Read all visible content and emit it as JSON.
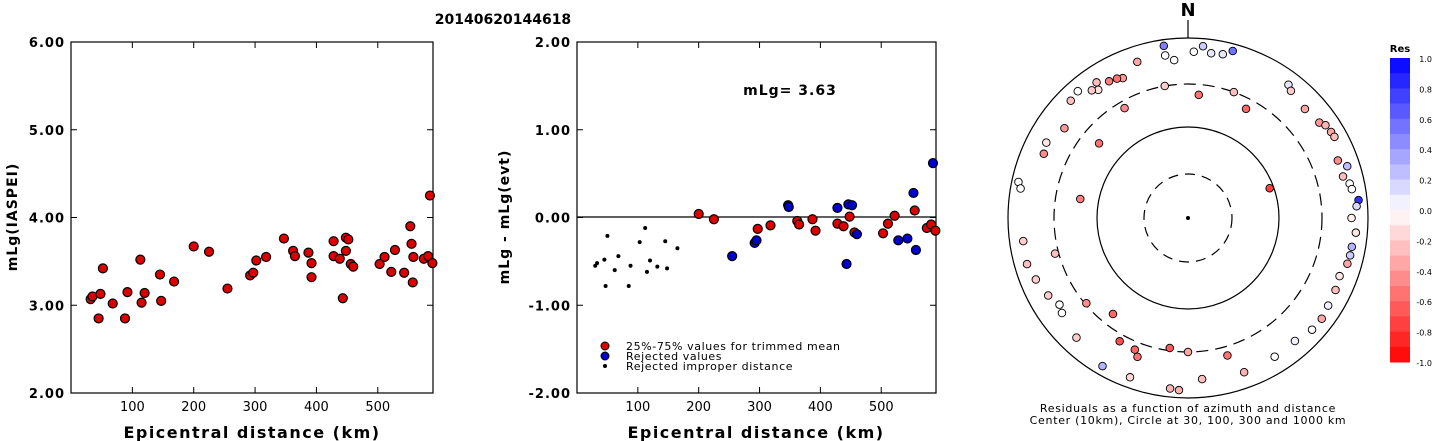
{
  "page_title": "20140620144618",
  "colors": {
    "red": "#dd0000",
    "blue": "#0000cc",
    "black": "#000000"
  },
  "chart_data": [
    {
      "type": "scatter",
      "title": "",
      "xlabel": "Epicentral distance (km)",
      "ylabel": "mLg(IASPEI)",
      "xlim": [
        0,
        590
      ],
      "ylim": [
        2.0,
        6.0
      ],
      "x_ticks": [
        "100",
        "200",
        "300",
        "400",
        "500"
      ],
      "x_tick_values": [
        100,
        200,
        300,
        400,
        500
      ],
      "y_ticks": [
        "2.00",
        "3.00",
        "4.00",
        "5.00",
        "6.00"
      ],
      "y_tick_values": [
        2,
        3,
        4,
        5,
        6
      ],
      "series": [
        {
          "color": "red",
          "points": [
            [
              32,
              3.07
            ],
            [
              35,
              3.1
            ],
            [
              45,
              2.85
            ],
            [
              48,
              3.13
            ],
            [
              52,
              3.42
            ],
            [
              68,
              3.02
            ],
            [
              88,
              2.85
            ],
            [
              92,
              3.15
            ],
            [
              115,
              3.03
            ],
            [
              113,
              3.52
            ],
            [
              120,
              3.14
            ],
            [
              145,
              3.35
            ],
            [
              147,
              3.05
            ],
            [
              168,
              3.27
            ],
            [
              200,
              3.67
            ],
            [
              225,
              3.61
            ],
            [
              255,
              3.19
            ],
            [
              292,
              3.34
            ],
            [
              297,
              3.37
            ],
            [
              302,
              3.51
            ],
            [
              318,
              3.55
            ],
            [
              347,
              3.76
            ],
            [
              362,
              3.62
            ],
            [
              365,
              3.56
            ],
            [
              387,
              3.6
            ],
            [
              392,
              3.48
            ],
            [
              392,
              3.32
            ],
            [
              428,
              3.73
            ],
            [
              428,
              3.56
            ],
            [
              438,
              3.53
            ],
            [
              443,
              3.08
            ],
            [
              448,
              3.62
            ],
            [
              448,
              3.77
            ],
            [
              452,
              3.75
            ],
            [
              456,
              3.47
            ],
            [
              460,
              3.44
            ],
            [
              503,
              3.47
            ],
            [
              511,
              3.55
            ],
            [
              522,
              3.38
            ],
            [
              528,
              3.63
            ],
            [
              543,
              3.37
            ],
            [
              553,
              3.9
            ],
            [
              555,
              3.7
            ],
            [
              557,
              3.26
            ],
            [
              558,
              3.55
            ],
            [
              575,
              3.53
            ],
            [
              582,
              3.56
            ],
            [
              585,
              4.25
            ],
            [
              589,
              3.48
            ]
          ]
        }
      ]
    },
    {
      "type": "scatter",
      "title": "",
      "xlabel": "Epicentral distance (km)",
      "ylabel": "mLg - mLg(evt)",
      "annotation": "mLg= 3.63",
      "xlim": [
        0,
        590
      ],
      "ylim": [
        -2.0,
        2.0
      ],
      "x_ticks": [
        "100",
        "200",
        "300",
        "400",
        "500"
      ],
      "x_tick_values": [
        100,
        200,
        300,
        400,
        500
      ],
      "y_ticks": [
        "-2.00",
        "-1.00",
        "0.00",
        "1.00",
        "2.00"
      ],
      "y_tick_values": [
        -2,
        -1,
        0,
        1,
        2
      ],
      "zero_line": true,
      "legend": {
        "position": "bottom-left",
        "entries": [
          {
            "label": "25%-75% values for trimmed mean",
            "color": "red",
            "marker": "circle"
          },
          {
            "label": "Rejected values",
            "color": "blue",
            "marker": "circle"
          },
          {
            "label": "Rejected improper distance",
            "color": "black",
            "marker": "dot"
          }
        ]
      },
      "series": [
        {
          "color": "red",
          "points": [
            [
              200,
              0.04
            ],
            [
              225,
              -0.02
            ],
            [
              297,
              -0.13
            ],
            [
              318,
              -0.09
            ],
            [
              362,
              -0.04
            ],
            [
              365,
              -0.08
            ],
            [
              387,
              -0.02
            ],
            [
              392,
              -0.15
            ],
            [
              428,
              -0.07
            ],
            [
              438,
              -0.1
            ],
            [
              448,
              0.01
            ],
            [
              456,
              -0.17
            ],
            [
              503,
              -0.18
            ],
            [
              511,
              -0.07
            ],
            [
              522,
              0.02
            ],
            [
              555,
              0.08
            ],
            [
              575,
              -0.12
            ],
            [
              582,
              -0.08
            ],
            [
              589,
              -0.15
            ]
          ]
        },
        {
          "color": "blue",
          "points": [
            [
              255,
              -0.44
            ],
            [
              292,
              -0.29
            ],
            [
              295,
              -0.26
            ],
            [
              347,
              0.14
            ],
            [
              348,
              0.12
            ],
            [
              428,
              0.11
            ],
            [
              443,
              -0.53
            ],
            [
              446,
              0.15
            ],
            [
              452,
              0.14
            ],
            [
              460,
              -0.19
            ],
            [
              528,
              -0.26
            ],
            [
              543,
              -0.24
            ],
            [
              553,
              0.28
            ],
            [
              557,
              -0.37
            ],
            [
              585,
              0.62
            ]
          ]
        },
        {
          "color": "black",
          "points": [
            [
              30,
              -0.55
            ],
            [
              33,
              -0.52
            ],
            [
              45,
              -0.48
            ],
            [
              47,
              -0.78
            ],
            [
              50,
              -0.21
            ],
            [
              62,
              -0.6
            ],
            [
              68,
              -0.44
            ],
            [
              85,
              -0.78
            ],
            [
              88,
              -0.55
            ],
            [
              103,
              -0.28
            ],
            [
              112,
              -0.12
            ],
            [
              115,
              -0.62
            ],
            [
              120,
              -0.49
            ],
            [
              132,
              -0.56
            ],
            [
              145,
              -0.27
            ],
            [
              148,
              -0.58
            ],
            [
              165,
              -0.35
            ]
          ]
        }
      ]
    },
    {
      "type": "polar-scatter",
      "title": "",
      "north_label": "N",
      "caption_line1": "Residuals as a function of azimuth and distance",
      "caption_line2": "Center (10km), Circle at 30, 100, 300 and 1000 km",
      "colorbar_title": "Res",
      "colorbar_ticks": [
        "1.0",
        "0.8",
        "0.6",
        "0.4",
        "0.2",
        "0.0",
        "-0.2",
        "-0.4",
        "-0.6",
        "-0.8",
        "-1.0"
      ],
      "colorbar_range": [
        -1.0,
        1.0
      ],
      "points": [
        {
          "az": -10,
          "dist": 300,
          "res": -0.2
        },
        {
          "az": 20,
          "dist": 300,
          "res": -0.25
        },
        {
          "az": 5,
          "dist": 230,
          "res": -0.55
        },
        {
          "az": -30,
          "dist": 250,
          "res": -0.45
        },
        {
          "az": 28,
          "dist": 230,
          "res": -0.6
        },
        {
          "az": 70,
          "dist": 90,
          "res": -0.75
        },
        {
          "az": -50,
          "dist": 190,
          "res": -0.55
        },
        {
          "az": -80,
          "dist": 160,
          "res": -0.5
        },
        {
          "az": -105,
          "dist": 330,
          "res": -0.25
        },
        {
          "az": -78,
          "dist": 840,
          "res": 0.0
        },
        {
          "az": -62,
          "dist": 600,
          "res": -0.1
        },
        {
          "az": -45,
          "dist": 690,
          "res": -0.25
        },
        {
          "az": -35,
          "dist": 540,
          "res": -0.1
        },
        {
          "az": -25,
          "dist": 510,
          "res": -0.4
        },
        {
          "az": -8,
          "dist": 850,
          "res": 0.5
        },
        {
          "az": 5,
          "dist": 820,
          "res": 0.2
        },
        {
          "az": 2,
          "dist": 700,
          "res": 0.0
        },
        {
          "az": 8,
          "dist": 700,
          "res": 0.1
        },
        {
          "az": 12,
          "dist": 720,
          "res": 0.1
        },
        {
          "az": 15,
          "dist": 830,
          "res": 0.55
        },
        {
          "az": 37,
          "dist": 710,
          "res": 0.1
        },
        {
          "az": 39,
          "dist": 650,
          "res": -0.2
        },
        {
          "az": 47,
          "dist": 590,
          "res": -0.35
        },
        {
          "az": 54,
          "dist": 630,
          "res": -0.4
        },
        {
          "az": 56,
          "dist": 690,
          "res": -0.3
        },
        {
          "az": 59,
          "dist": 710,
          "res": -0.35
        },
        {
          "az": 61,
          "dist": 720,
          "res": -0.25
        },
        {
          "az": 69,
          "dist": 600,
          "res": -0.45
        },
        {
          "az": 72,
          "dist": 720,
          "res": 0.25
        },
        {
          "az": 75,
          "dist": 600,
          "res": -0.25
        },
        {
          "az": 78,
          "dist": 680,
          "res": 0.0
        },
        {
          "az": 80,
          "dist": 700,
          "res": 0.0
        },
        {
          "az": 84,
          "dist": 800,
          "res": 0.8
        },
        {
          "az": 86,
          "dist": 750,
          "res": 0.15
        },
        {
          "az": 90,
          "dist": 650,
          "res": -0.05
        },
        {
          "az": 95,
          "dist": 740,
          "res": -0.1
        },
        {
          "az": 100,
          "dist": 700,
          "res": 0.3
        },
        {
          "az": 103,
          "dist": 700,
          "res": 0.2
        },
        {
          "az": 106,
          "dist": 690,
          "res": -0.35
        },
        {
          "az": 111,
          "dist": 630,
          "res": -0.1
        },
        {
          "az": 116,
          "dist": 660,
          "res": -0.25
        },
        {
          "az": 122,
          "dist": 680,
          "res": 0.05
        },
        {
          "az": 127,
          "dist": 720,
          "res": -0.35
        },
        {
          "az": 132,
          "dist": 710,
          "res": 0.0
        },
        {
          "az": 139,
          "dist": 640,
          "res": 0.05
        },
        {
          "az": 148,
          "dist": 650,
          "res": 0.0
        },
        {
          "az": 160,
          "dist": 660,
          "res": -0.3
        },
        {
          "az": 175,
          "dist": 620,
          "res": -0.25
        },
        {
          "az": 183,
          "dist": 820,
          "res": -0.3
        },
        {
          "az": 186,
          "dist": 800,
          "res": -0.3
        },
        {
          "az": 200,
          "dist": 760,
          "res": -0.15
        },
        {
          "az": 210,
          "dist": 790,
          "res": 0.3
        },
        {
          "az": 223,
          "dist": 650,
          "res": -0.2
        },
        {
          "az": 233,
          "dist": 560,
          "res": 0.0
        },
        {
          "az": 236,
          "dist": 520,
          "res": 0.0
        },
        {
          "az": 241,
          "dist": 590,
          "res": -0.2
        },
        {
          "az": 248,
          "dist": 660,
          "res": -0.2
        },
        {
          "az": 254,
          "dist": 720,
          "res": -0.25
        },
        {
          "az": 262,
          "dist": 700,
          "res": -0.2
        },
        {
          "az": 280,
          "dist": 770,
          "res": 0.0
        },
        {
          "az": 294,
          "dist": 560,
          "res": -0.45
        },
        {
          "az": 306,
          "dist": 490,
          "res": -0.4
        },
        {
          "az": 319,
          "dist": 730,
          "res": 0.0
        },
        {
          "az": 323,
          "dist": 590,
          "res": -0.2
        },
        {
          "az": 326,
          "dist": 650,
          "res": -0.25
        },
        {
          "az": 330,
          "dist": 560,
          "res": -0.5
        },
        {
          "az": 333,
          "dist": 540,
          "res": -0.55
        },
        {
          "az": 342,
          "dist": 660,
          "res": -0.35
        },
        {
          "az": 352,
          "dist": 660,
          "res": 0.0
        },
        {
          "az": 355,
          "dist": 570,
          "res": 0.0
        },
        {
          "az": 200,
          "dist": 430,
          "res": -0.55
        },
        {
          "az": 209,
          "dist": 360,
          "res": -0.7
        },
        {
          "az": 202,
          "dist": 370,
          "res": -0.6
        },
        {
          "az": 188,
          "dist": 280,
          "res": -0.65
        },
        {
          "az": 180,
          "dist": 300,
          "res": -0.35
        },
        {
          "az": 164,
          "dist": 380,
          "res": -0.55
        },
        {
          "az": 218,
          "dist": 220,
          "res": -0.6
        },
        {
          "az": 230,
          "dist": 290,
          "res": -0.45
        }
      ]
    }
  ]
}
